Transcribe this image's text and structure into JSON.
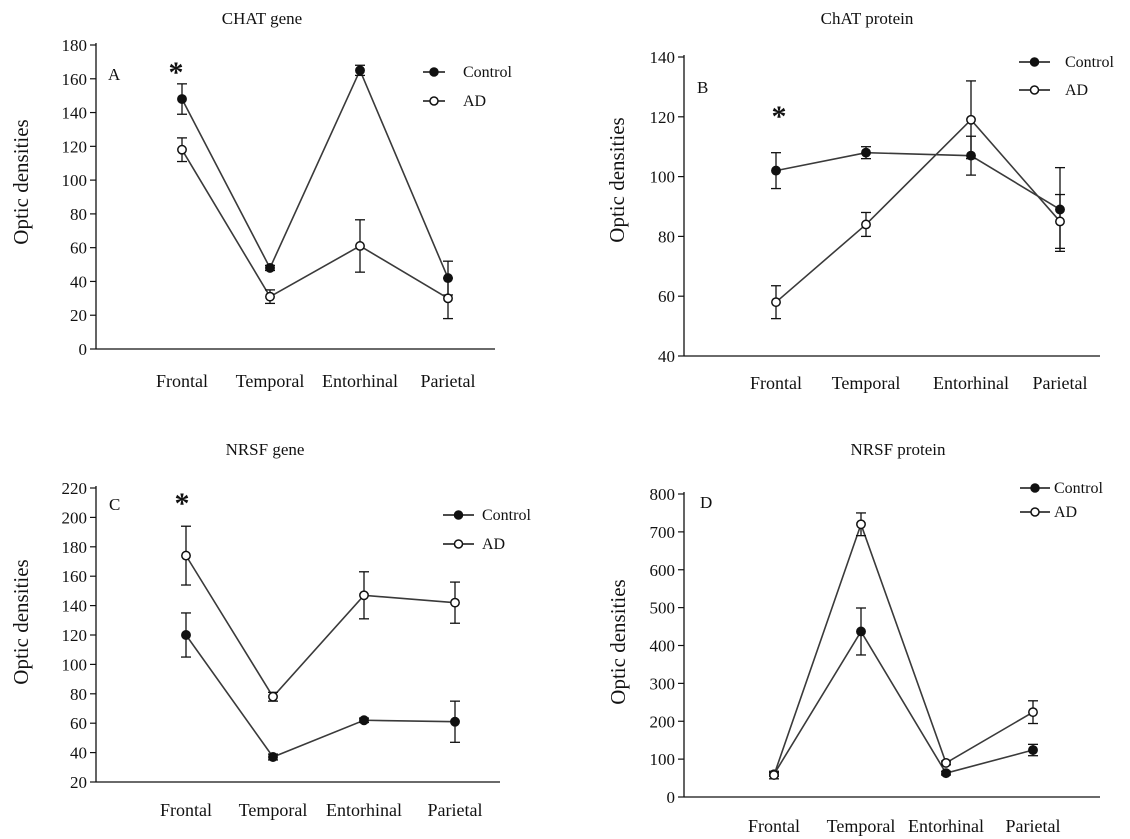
{
  "colors": {
    "line": "#3a3a3a",
    "axis": "#111111",
    "background": "#ffffff"
  },
  "legend_names": [
    "Control",
    "AD"
  ],
  "chart_data": [
    {
      "id": "A",
      "type": "line",
      "title": "CHAT gene",
      "panel_label": "A",
      "xlabel": "",
      "ylabel": "Optic densities",
      "ylim": [
        0,
        180
      ],
      "yticks": [
        0,
        20,
        40,
        60,
        80,
        100,
        120,
        140,
        160,
        180
      ],
      "categories": [
        "Frontal",
        "Temporal",
        "Entorhinal",
        "Parietal"
      ],
      "series": [
        {
          "name": "Control",
          "marker": "filled",
          "values": [
            148,
            48,
            165,
            42
          ],
          "errors": [
            9,
            1.5,
            3,
            10
          ]
        },
        {
          "name": "AD",
          "marker": "open",
          "values": [
            118,
            31,
            61,
            30
          ],
          "errors": [
            7,
            4,
            15.5,
            12
          ]
        }
      ],
      "annotations": [
        {
          "text": "*",
          "category": "Frontal"
        }
      ],
      "legend_position": "top-right"
    },
    {
      "id": "B",
      "type": "line",
      "title": "ChAT protein",
      "panel_label": "B",
      "xlabel": "",
      "ylabel": "Optic densities",
      "ylim": [
        40,
        140
      ],
      "yticks": [
        40,
        60,
        80,
        100,
        120,
        140
      ],
      "categories": [
        "Frontal",
        "Temporal",
        "Entorhinal",
        "Parietal"
      ],
      "series": [
        {
          "name": "Control",
          "marker": "filled",
          "values": [
            102,
            108,
            107,
            89
          ],
          "errors": [
            6,
            2,
            6.5,
            14
          ]
        },
        {
          "name": "AD",
          "marker": "open",
          "values": [
            58,
            84,
            119,
            85
          ],
          "errors": [
            5.5,
            4,
            13,
            9
          ]
        }
      ],
      "annotations": [
        {
          "text": "*",
          "category": "Frontal"
        }
      ],
      "legend_position": "top-right"
    },
    {
      "id": "C",
      "type": "line",
      "title": "NRSF gene",
      "panel_label": "C",
      "xlabel": "",
      "ylabel": "Optic densities",
      "ylim": [
        20,
        220
      ],
      "yticks": [
        20,
        40,
        60,
        80,
        100,
        120,
        140,
        160,
        180,
        200,
        220
      ],
      "categories": [
        "Frontal",
        "Temporal",
        "Entorhinal",
        "Parietal"
      ],
      "series": [
        {
          "name": "Control",
          "marker": "filled",
          "values": [
            120,
            37,
            62,
            61
          ],
          "errors": [
            15,
            2,
            1.5,
            14
          ]
        },
        {
          "name": "AD",
          "marker": "open",
          "values": [
            174,
            78,
            147,
            142
          ],
          "errors": [
            20,
            3,
            16,
            14
          ]
        }
      ],
      "annotations": [
        {
          "text": "*",
          "category": "Frontal"
        }
      ],
      "legend_position": "top-right"
    },
    {
      "id": "D",
      "type": "line",
      "title": "NRSF protein",
      "panel_label": "D",
      "xlabel": "",
      "ylabel": "Optic densities",
      "ylim": [
        0,
        800
      ],
      "yticks": [
        0,
        100,
        200,
        300,
        400,
        500,
        600,
        700,
        800
      ],
      "categories": [
        "Frontal",
        "Temporal",
        "Entorhinal",
        "Parietal"
      ],
      "series": [
        {
          "name": "Control",
          "marker": "filled",
          "values": [
            60,
            437,
            63,
            124
          ],
          "errors": [
            5,
            62,
            5,
            15
          ]
        },
        {
          "name": "AD",
          "marker": "open",
          "values": [
            58,
            720,
            90,
            224
          ],
          "errors": [
            10,
            30,
            5,
            30
          ]
        }
      ],
      "annotations": [],
      "legend_position": "top-right"
    }
  ]
}
